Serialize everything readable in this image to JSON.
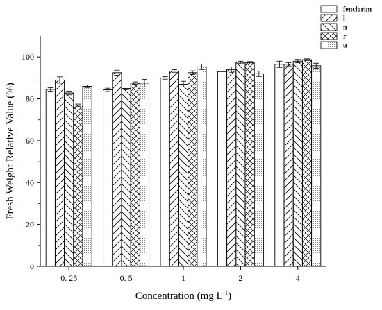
{
  "chart_data": {
    "type": "bar",
    "title": "",
    "xlabel": "Concentration (mg L",
    "xlabel_superscript": "-1",
    "xlabel_suffix": ")",
    "ylabel": "Fresh Weight Relative Value (%)",
    "ylim": [
      0,
      110
    ],
    "yticks": [
      "0",
      "20",
      "40",
      "60",
      "80",
      "100"
    ],
    "categories": [
      "0. 25",
      "0. 5",
      "1",
      "2",
      "4"
    ],
    "legend_position": "top-right",
    "series": [
      {
        "name": "fenclorim",
        "pattern": "blank",
        "values": [
          84.5,
          84.3,
          90.0,
          93.0,
          96.5
        ],
        "errors": [
          0.8,
          0.8,
          0.6,
          0.0,
          1.5
        ]
      },
      {
        "name": "l",
        "pattern": "diag-right",
        "values": [
          89.0,
          92.5,
          93.3,
          94.0,
          96.5
        ],
        "errors": [
          1.5,
          1.2,
          0.6,
          1.3,
          0.8
        ]
      },
      {
        "name": "n",
        "pattern": "diag-left",
        "values": [
          82.8,
          85.0,
          87.0,
          97.5,
          98.0
        ],
        "errors": [
          0.9,
          0.6,
          1.4,
          0.5,
          0.8
        ]
      },
      {
        "name": "r",
        "pattern": "cross",
        "values": [
          77.0,
          87.5,
          92.5,
          97.2,
          98.7
        ],
        "errors": [
          0.5,
          0.6,
          0.9,
          0.6,
          0.4
        ]
      },
      {
        "name": "u",
        "pattern": "dots",
        "values": [
          86.0,
          87.5,
          95.3,
          92.0,
          95.8
        ],
        "errors": [
          0.6,
          1.8,
          1.3,
          1.3,
          1.2
        ]
      }
    ]
  }
}
